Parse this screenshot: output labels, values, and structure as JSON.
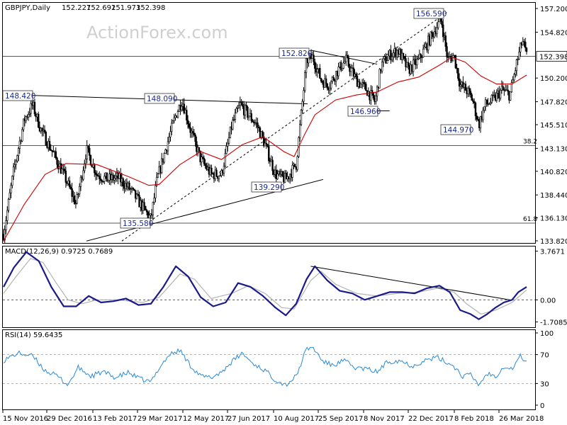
{
  "chart_data": [
    {
      "type": "candlestick",
      "title": "GBPJPY,Daily",
      "ohlc_header": [
        "152.227",
        "152.692",
        "151.973",
        "152.398"
      ],
      "watermark": "ActionForex.com",
      "y_ticks": [
        "157.200",
        "154.820",
        "152.398",
        "150.200",
        "147.820",
        "145.510",
        "143.130",
        "140.820",
        "138.440",
        "136.130",
        "133.820"
      ],
      "ylim": [
        133.82,
        157.2
      ],
      "current_price": 152.398,
      "x_tick_labels": [
        "15 Nov 2016",
        "29 Dec 2016",
        "13 Feb 2017",
        "29 Mar 2017",
        "12 May 2017",
        "27 Jun 2017",
        "10 Aug 2017",
        "25 Sep 2017",
        "8 Nov 2017",
        "22 Dec 2017",
        "8 Feb 2018",
        "26 Mar 2018"
      ],
      "annotations": [
        {
          "label": "148.420",
          "x": "15 Nov 2016",
          "y": 148.42
        },
        {
          "label": "148.090",
          "x": "12 May 2017",
          "y": 148.09
        },
        {
          "label": "135.580",
          "x": "12 Apr 2017",
          "y": 135.58
        },
        {
          "label": "139.290",
          "x": "29 Aug 2017",
          "y": 139.29
        },
        {
          "label": "152.820",
          "x": "21 Sep 2017",
          "y": 152.82
        },
        {
          "label": "146.960",
          "x": "23 Nov 2017",
          "y": 146.96
        },
        {
          "label": "156.590",
          "x": "5 Feb 2018",
          "y": 156.59
        },
        {
          "label": "144.970",
          "x": "26 Feb 2018",
          "y": 144.97
        }
      ],
      "fib_levels": [
        {
          "label": "38.2",
          "y": 143.4
        },
        {
          "label": "61.8",
          "y": 135.6
        }
      ],
      "price_series": [
        {
          "d": 0,
          "v": 134.5
        },
        {
          "d": 10,
          "v": 141.0
        },
        {
          "d": 20,
          "v": 146.0
        },
        {
          "d": 28,
          "v": 147.5
        },
        {
          "d": 36,
          "v": 145.0
        },
        {
          "d": 46,
          "v": 143.0
        },
        {
          "d": 58,
          "v": 140.5
        },
        {
          "d": 70,
          "v": 137.5
        },
        {
          "d": 80,
          "v": 143.0
        },
        {
          "d": 90,
          "v": 140.5
        },
        {
          "d": 100,
          "v": 140.0
        },
        {
          "d": 110,
          "v": 140.2
        },
        {
          "d": 122,
          "v": 139.0
        },
        {
          "d": 132,
          "v": 137.5
        },
        {
          "d": 142,
          "v": 136.0
        },
        {
          "d": 148,
          "v": 140.0
        },
        {
          "d": 156,
          "v": 143.0
        },
        {
          "d": 166,
          "v": 146.5
        },
        {
          "d": 172,
          "v": 148.0
        },
        {
          "d": 180,
          "v": 145.0
        },
        {
          "d": 190,
          "v": 142.0
        },
        {
          "d": 200,
          "v": 140.5
        },
        {
          "d": 210,
          "v": 140.5
        },
        {
          "d": 220,
          "v": 145.5
        },
        {
          "d": 228,
          "v": 147.5
        },
        {
          "d": 236,
          "v": 146.5
        },
        {
          "d": 244,
          "v": 145.5
        },
        {
          "d": 252,
          "v": 143.5
        },
        {
          "d": 262,
          "v": 140.5
        },
        {
          "d": 272,
          "v": 140.0
        },
        {
          "d": 282,
          "v": 141.5
        },
        {
          "d": 292,
          "v": 152.0
        },
        {
          "d": 298,
          "v": 152.3
        },
        {
          "d": 306,
          "v": 150.0
        },
        {
          "d": 314,
          "v": 149.5
        },
        {
          "d": 322,
          "v": 151.0
        },
        {
          "d": 330,
          "v": 152.0
        },
        {
          "d": 340,
          "v": 150.0
        },
        {
          "d": 350,
          "v": 149.0
        },
        {
          "d": 358,
          "v": 147.8
        },
        {
          "d": 364,
          "v": 151.5
        },
        {
          "d": 372,
          "v": 152.5
        },
        {
          "d": 380,
          "v": 153.0
        },
        {
          "d": 390,
          "v": 151.0
        },
        {
          "d": 400,
          "v": 152.0
        },
        {
          "d": 410,
          "v": 154.0
        },
        {
          "d": 418,
          "v": 155.5
        },
        {
          "d": 422,
          "v": 156.0
        },
        {
          "d": 428,
          "v": 152.0
        },
        {
          "d": 434,
          "v": 152.5
        },
        {
          "d": 440,
          "v": 149.5
        },
        {
          "d": 446,
          "v": 149.0
        },
        {
          "d": 452,
          "v": 148.0
        },
        {
          "d": 458,
          "v": 145.5
        },
        {
          "d": 464,
          "v": 147.5
        },
        {
          "d": 472,
          "v": 148.0
        },
        {
          "d": 480,
          "v": 149.0
        },
        {
          "d": 488,
          "v": 148.5
        },
        {
          "d": 494,
          "v": 151.5
        },
        {
          "d": 500,
          "v": 154.0
        },
        {
          "d": 504,
          "v": 152.4
        }
      ],
      "moving_average": [
        {
          "d": 0,
          "v": 133.8
        },
        {
          "d": 20,
          "v": 137.5
        },
        {
          "d": 40,
          "v": 140.5
        },
        {
          "d": 60,
          "v": 141.6
        },
        {
          "d": 90,
          "v": 141.5
        },
        {
          "d": 120,
          "v": 140.3
        },
        {
          "d": 140,
          "v": 139.4
        },
        {
          "d": 150,
          "v": 139.5
        },
        {
          "d": 170,
          "v": 141.5
        },
        {
          "d": 190,
          "v": 142.8
        },
        {
          "d": 210,
          "v": 142.0
        },
        {
          "d": 230,
          "v": 143.5
        },
        {
          "d": 250,
          "v": 144.3
        },
        {
          "d": 270,
          "v": 142.8
        },
        {
          "d": 280,
          "v": 142.3
        },
        {
          "d": 290,
          "v": 144.5
        },
        {
          "d": 300,
          "v": 146.5
        },
        {
          "d": 320,
          "v": 148.0
        },
        {
          "d": 340,
          "v": 148.5
        },
        {
          "d": 360,
          "v": 148.8
        },
        {
          "d": 380,
          "v": 149.8
        },
        {
          "d": 400,
          "v": 150.3
        },
        {
          "d": 420,
          "v": 151.5
        },
        {
          "d": 432,
          "v": 152.3
        },
        {
          "d": 445,
          "v": 151.8
        },
        {
          "d": 460,
          "v": 150.4
        },
        {
          "d": 475,
          "v": 149.6
        },
        {
          "d": 490,
          "v": 149.6
        },
        {
          "d": 504,
          "v": 150.5
        }
      ]
    },
    {
      "type": "line",
      "title": "MACD(12,26,9) 0.9725 0.7689",
      "y_ticks": [
        "3.7671",
        "0.00",
        "-1.7085"
      ],
      "zero_label": "0.00",
      "ylim": [
        -1.9,
        3.8
      ],
      "series": [
        {
          "name": "MACD",
          "values": [
            {
              "d": 0,
              "v": 1.0
            },
            {
              "d": 10,
              "v": 2.5
            },
            {
              "d": 22,
              "v": 3.7
            },
            {
              "d": 34,
              "v": 3.0
            },
            {
              "d": 46,
              "v": 1.0
            },
            {
              "d": 58,
              "v": -0.5
            },
            {
              "d": 70,
              "v": -0.5
            },
            {
              "d": 82,
              "v": 0.3
            },
            {
              "d": 94,
              "v": -0.2
            },
            {
              "d": 106,
              "v": -0.1
            },
            {
              "d": 118,
              "v": 0.1
            },
            {
              "d": 130,
              "v": -0.4
            },
            {
              "d": 142,
              "v": -0.3
            },
            {
              "d": 154,
              "v": 1.0
            },
            {
              "d": 166,
              "v": 2.6
            },
            {
              "d": 178,
              "v": 1.8
            },
            {
              "d": 190,
              "v": 0.2
            },
            {
              "d": 202,
              "v": -0.5
            },
            {
              "d": 214,
              "v": -0.2
            },
            {
              "d": 226,
              "v": 1.3
            },
            {
              "d": 238,
              "v": 1.0
            },
            {
              "d": 250,
              "v": 0.3
            },
            {
              "d": 262,
              "v": -0.6
            },
            {
              "d": 272,
              "v": -1.2
            },
            {
              "d": 282,
              "v": -0.3
            },
            {
              "d": 292,
              "v": 1.6
            },
            {
              "d": 300,
              "v": 2.6
            },
            {
              "d": 312,
              "v": 1.5
            },
            {
              "d": 324,
              "v": 0.7
            },
            {
              "d": 336,
              "v": 0.5
            },
            {
              "d": 348,
              "v": 0.0
            },
            {
              "d": 360,
              "v": 0.3
            },
            {
              "d": 372,
              "v": 0.6
            },
            {
              "d": 384,
              "v": 0.6
            },
            {
              "d": 396,
              "v": 0.5
            },
            {
              "d": 408,
              "v": 0.9
            },
            {
              "d": 420,
              "v": 1.1
            },
            {
              "d": 430,
              "v": 0.6
            },
            {
              "d": 440,
              "v": -0.8
            },
            {
              "d": 450,
              "v": -1.1
            },
            {
              "d": 458,
              "v": -1.5
            },
            {
              "d": 466,
              "v": -1.1
            },
            {
              "d": 474,
              "v": -0.6
            },
            {
              "d": 482,
              "v": -0.2
            },
            {
              "d": 490,
              "v": 0.0
            },
            {
              "d": 496,
              "v": 0.6
            },
            {
              "d": 504,
              "v": 1.0
            }
          ]
        },
        {
          "name": "Signal",
          "values": [
            {
              "d": 0,
              "v": 0.5
            },
            {
              "d": 12,
              "v": 1.8
            },
            {
              "d": 26,
              "v": 3.2
            },
            {
              "d": 38,
              "v": 2.9
            },
            {
              "d": 50,
              "v": 1.4
            },
            {
              "d": 62,
              "v": 0.0
            },
            {
              "d": 76,
              "v": -0.3
            },
            {
              "d": 90,
              "v": 0.0
            },
            {
              "d": 110,
              "v": 0.0
            },
            {
              "d": 134,
              "v": -0.2
            },
            {
              "d": 150,
              "v": 0.2
            },
            {
              "d": 170,
              "v": 2.0
            },
            {
              "d": 184,
              "v": 1.6
            },
            {
              "d": 200,
              "v": 0.1
            },
            {
              "d": 220,
              "v": 0.5
            },
            {
              "d": 236,
              "v": 1.1
            },
            {
              "d": 252,
              "v": 0.5
            },
            {
              "d": 268,
              "v": -0.6
            },
            {
              "d": 280,
              "v": -0.7
            },
            {
              "d": 296,
              "v": 1.5
            },
            {
              "d": 306,
              "v": 2.2
            },
            {
              "d": 320,
              "v": 1.2
            },
            {
              "d": 340,
              "v": 0.5
            },
            {
              "d": 360,
              "v": 0.3
            },
            {
              "d": 380,
              "v": 0.5
            },
            {
              "d": 400,
              "v": 0.6
            },
            {
              "d": 418,
              "v": 0.9
            },
            {
              "d": 434,
              "v": 0.6
            },
            {
              "d": 446,
              "v": -0.3
            },
            {
              "d": 460,
              "v": -1.1
            },
            {
              "d": 474,
              "v": -0.8
            },
            {
              "d": 490,
              "v": -0.2
            },
            {
              "d": 504,
              "v": 0.77
            }
          ]
        }
      ]
    },
    {
      "type": "line",
      "title": "RSI(14) 59.6435",
      "y_ticks": [
        "100",
        "70",
        "30",
        "0"
      ],
      "ylim": [
        0,
        100
      ],
      "series": [
        {
          "name": "RSI",
          "values": [
            {
              "d": 0,
              "v": 62
            },
            {
              "d": 14,
              "v": 72
            },
            {
              "d": 28,
              "v": 68
            },
            {
              "d": 40,
              "v": 48
            },
            {
              "d": 52,
              "v": 40
            },
            {
              "d": 62,
              "v": 28
            },
            {
              "d": 72,
              "v": 52
            },
            {
              "d": 84,
              "v": 40
            },
            {
              "d": 96,
              "v": 46
            },
            {
              "d": 108,
              "v": 38
            },
            {
              "d": 120,
              "v": 45
            },
            {
              "d": 132,
              "v": 36
            },
            {
              "d": 142,
              "v": 32
            },
            {
              "d": 150,
              "v": 52
            },
            {
              "d": 160,
              "v": 70
            },
            {
              "d": 170,
              "v": 76
            },
            {
              "d": 180,
              "v": 55
            },
            {
              "d": 190,
              "v": 40
            },
            {
              "d": 200,
              "v": 38
            },
            {
              "d": 210,
              "v": 46
            },
            {
              "d": 220,
              "v": 60
            },
            {
              "d": 230,
              "v": 72
            },
            {
              "d": 240,
              "v": 58
            },
            {
              "d": 252,
              "v": 48
            },
            {
              "d": 262,
              "v": 35
            },
            {
              "d": 272,
              "v": 28
            },
            {
              "d": 282,
              "v": 40
            },
            {
              "d": 292,
              "v": 78
            },
            {
              "d": 298,
              "v": 80
            },
            {
              "d": 308,
              "v": 60
            },
            {
              "d": 318,
              "v": 55
            },
            {
              "d": 328,
              "v": 62
            },
            {
              "d": 338,
              "v": 52
            },
            {
              "d": 350,
              "v": 50
            },
            {
              "d": 360,
              "v": 46
            },
            {
              "d": 370,
              "v": 60
            },
            {
              "d": 382,
              "v": 62
            },
            {
              "d": 394,
              "v": 54
            },
            {
              "d": 406,
              "v": 62
            },
            {
              "d": 418,
              "v": 66
            },
            {
              "d": 426,
              "v": 60
            },
            {
              "d": 434,
              "v": 54
            },
            {
              "d": 442,
              "v": 40
            },
            {
              "d": 450,
              "v": 42
            },
            {
              "d": 458,
              "v": 28
            },
            {
              "d": 466,
              "v": 44
            },
            {
              "d": 474,
              "v": 40
            },
            {
              "d": 482,
              "v": 54
            },
            {
              "d": 490,
              "v": 50
            },
            {
              "d": 498,
              "v": 68
            },
            {
              "d": 504,
              "v": 60
            }
          ]
        }
      ]
    }
  ],
  "colors": {
    "candle": "#000000",
    "moving_average": "#cc0000",
    "macd": "#1a1a8c",
    "macd_signal": "#b3b3b3",
    "rsi": "#2a8ad6",
    "tag_text": "#1c2a8c",
    "watermark": "#cfcfcf"
  }
}
